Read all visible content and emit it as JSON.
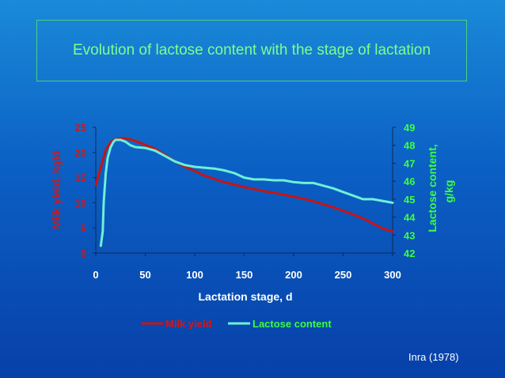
{
  "title": "Evolution of lactose content with the stage of lactation",
  "credit": "Inra (1978)",
  "colors": {
    "milk": "#c81414",
    "lactose": "#6ef0d6",
    "left_axis_text": "#d01818",
    "right_axis_text": "#3dff3d",
    "axis_text": "#ffffff"
  },
  "chart_data": {
    "type": "line",
    "xlabel": "Lactation stage, d",
    "ylabel": "Milk yield, kg/d",
    "y2label_line1": "Lactose content,",
    "y2label_line2": "g/kg",
    "xlim": [
      0,
      300
    ],
    "ylim": [
      0,
      25
    ],
    "y2lim": [
      42,
      49
    ],
    "xticks": [
      0,
      50,
      100,
      150,
      200,
      250,
      300
    ],
    "yticks": [
      0,
      5,
      10,
      15,
      20,
      25
    ],
    "y2ticks": [
      42,
      43,
      44,
      45,
      46,
      47,
      48,
      49
    ],
    "legend": [
      "Milk yield",
      "Lactose content"
    ],
    "series": [
      {
        "name": "Milk yield",
        "axis": "left",
        "x": [
          0,
          5,
          10,
          15,
          20,
          25,
          30,
          35,
          40,
          50,
          60,
          70,
          80,
          90,
          100,
          110,
          120,
          130,
          140,
          150,
          160,
          170,
          180,
          190,
          200,
          210,
          220,
          230,
          240,
          250,
          260,
          270,
          280,
          290,
          300
        ],
        "y": [
          13.5,
          17,
          20.5,
          22,
          22.6,
          22.8,
          22.8,
          22.6,
          22.3,
          21.5,
          20.7,
          19.5,
          18.2,
          17.2,
          16.3,
          15.4,
          14.7,
          14.1,
          13.6,
          13.1,
          12.7,
          12.3,
          12.0,
          11.6,
          11.2,
          10.8,
          10.3,
          9.7,
          9.1,
          8.4,
          7.7,
          6.9,
          5.9,
          4.9,
          4.3
        ]
      },
      {
        "name": "Lactose content",
        "axis": "right",
        "x": [
          5,
          7,
          8,
          10,
          12,
          15,
          18,
          20,
          25,
          30,
          35,
          40,
          50,
          60,
          70,
          80,
          90,
          100,
          110,
          120,
          130,
          140,
          150,
          160,
          170,
          180,
          190,
          200,
          210,
          220,
          230,
          240,
          250,
          260,
          270,
          280,
          290,
          300
        ],
        "y": [
          42.4,
          43.2,
          44.8,
          46.4,
          47.3,
          47.9,
          48.2,
          48.3,
          48.3,
          48.2,
          48.0,
          47.9,
          47.85,
          47.7,
          47.4,
          47.1,
          46.9,
          46.8,
          46.75,
          46.7,
          46.6,
          46.45,
          46.2,
          46.1,
          46.1,
          46.05,
          46.05,
          45.95,
          45.9,
          45.9,
          45.75,
          45.6,
          45.4,
          45.2,
          45.0,
          45.0,
          44.9,
          44.8
        ]
      }
    ]
  }
}
